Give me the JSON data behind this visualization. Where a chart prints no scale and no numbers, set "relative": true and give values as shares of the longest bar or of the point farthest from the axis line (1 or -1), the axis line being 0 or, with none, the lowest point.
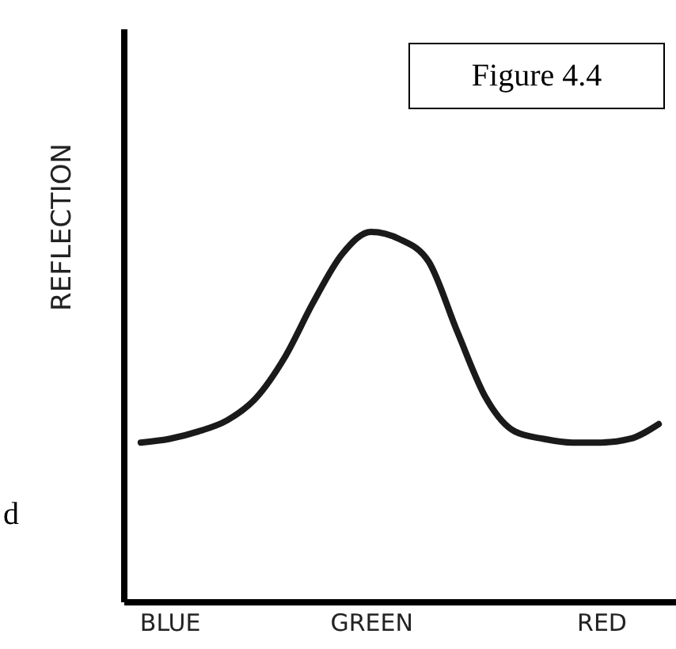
{
  "chart_data": {
    "type": "line",
    "title": "Figure 4.4",
    "ylabel": "REFLECTION",
    "relative": true,
    "grid": false,
    "marker": "none",
    "line_style": "solid",
    "categories": [
      null,
      "BLUE",
      null,
      null,
      null,
      null,
      null,
      null,
      "GREEN",
      null,
      null,
      null,
      null,
      null,
      null,
      null,
      "RED",
      null,
      null
    ],
    "series": [
      {
        "color": "#1a1a1a",
        "values": [
          0.43,
          0.44,
          0.46,
          0.49,
          0.55,
          0.66,
          0.81,
          0.94,
          1.0,
          0.98,
          0.92,
          0.73,
          0.55,
          0.46,
          0.44,
          0.43,
          0.43,
          0.44,
          0.48
        ]
      }
    ],
    "annotations": [
      "d"
    ]
  }
}
